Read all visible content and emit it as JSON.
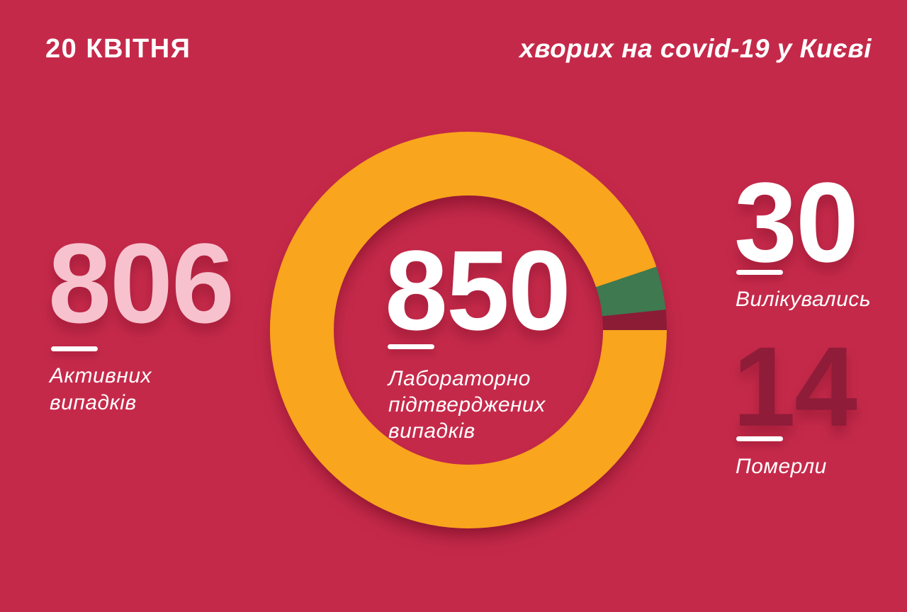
{
  "page": {
    "background_color": "#C5294A"
  },
  "header": {
    "date": "20 КВІТНЯ",
    "title": "хворих на covid-19 у Києві"
  },
  "stats": {
    "active": {
      "value": "806",
      "label": "Активних\nвипадків",
      "value_color": "#F7C2CE"
    },
    "confirmed": {
      "value": "850",
      "label": "Лабораторно\nпідтверджених\nвипадків",
      "value_color": "#FFFFFF"
    },
    "recovered": {
      "value": "30",
      "label": "Вилікувались",
      "value_color": "#FFFFFF"
    },
    "died": {
      "value": "14",
      "label": "Померли",
      "value_color": "#8F1C38"
    }
  },
  "chart_data": {
    "type": "pie",
    "variant": "donut",
    "title": "хворих на covid-19 у Києві",
    "date": "20 КВІТНЯ",
    "total": 850,
    "center_value": 850,
    "center_caption": "Лабораторно підтверджених випадків",
    "start_angle": "3-oclock, clockwise",
    "legend": "none",
    "segments": [
      {
        "name": "Активних випадків",
        "value": 806,
        "color": "#F9A51D"
      },
      {
        "name": "Вилікувались",
        "value": 30,
        "color": "#3E7950"
      },
      {
        "name": "Померли",
        "value": 14,
        "color": "#8C1B36"
      }
    ]
  }
}
